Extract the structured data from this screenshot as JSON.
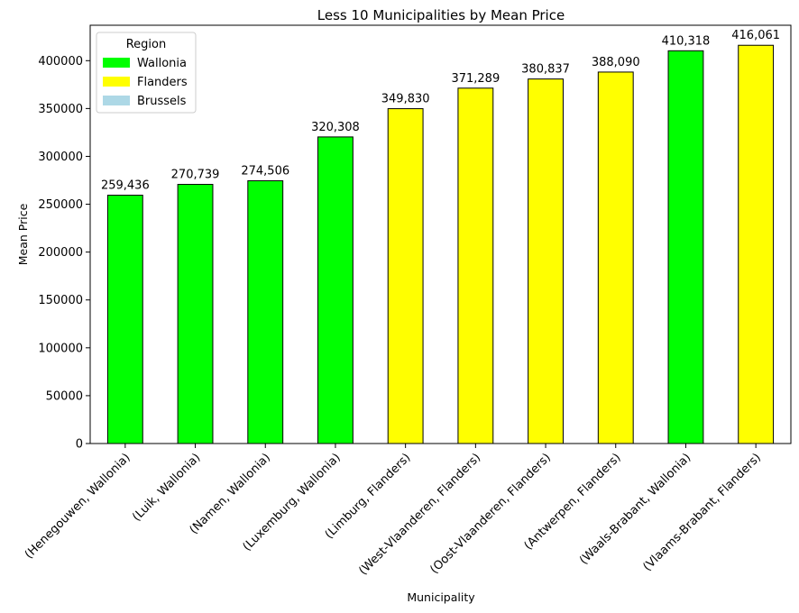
{
  "chart_data": {
    "type": "bar",
    "title": "Less 10 Municipalities by Mean Price",
    "xlabel": "Municipality",
    "ylabel": "Mean Price",
    "ylim": [
      0,
      437000
    ],
    "yticks": [
      0,
      50000,
      100000,
      150000,
      200000,
      250000,
      300000,
      350000,
      400000
    ],
    "ytick_labels": [
      "0",
      "50000",
      "100000",
      "150000",
      "200000",
      "250000",
      "300000",
      "350000",
      "400000"
    ],
    "categories": [
      "(Henegouwen, Wallonia)",
      "(Luik, Wallonia)",
      "(Namen, Wallonia)",
      "(Luxemburg, Wallonia)",
      "(Limburg, Flanders)",
      "(West-Vlaanderen, Flanders)",
      "(Oost-Vlaanderen, Flanders)",
      "(Antwerpen, Flanders)",
      "(Waals-Brabant, Wallonia)",
      "(Vlaams-Brabant, Flanders)"
    ],
    "values": [
      259436,
      270739,
      274506,
      320308,
      349830,
      371289,
      380837,
      388090,
      410318,
      416061
    ],
    "value_labels": [
      "259,436",
      "270,739",
      "274,506",
      "320,308",
      "349,830",
      "371,289",
      "380,837",
      "388,090",
      "410,318",
      "416,061"
    ],
    "regions": [
      "Wallonia",
      "Wallonia",
      "Wallonia",
      "Wallonia",
      "Flanders",
      "Flanders",
      "Flanders",
      "Flanders",
      "Wallonia",
      "Flanders"
    ],
    "legend": {
      "title": "Region",
      "placement": "top-left",
      "entries": [
        {
          "name": "Wallonia",
          "color": "#00ff00"
        },
        {
          "name": "Flanders",
          "color": "#ffff00"
        },
        {
          "name": "Brussels",
          "color": "#add8e6"
        }
      ]
    },
    "grid": false,
    "bar_edge_color": "#000000"
  }
}
